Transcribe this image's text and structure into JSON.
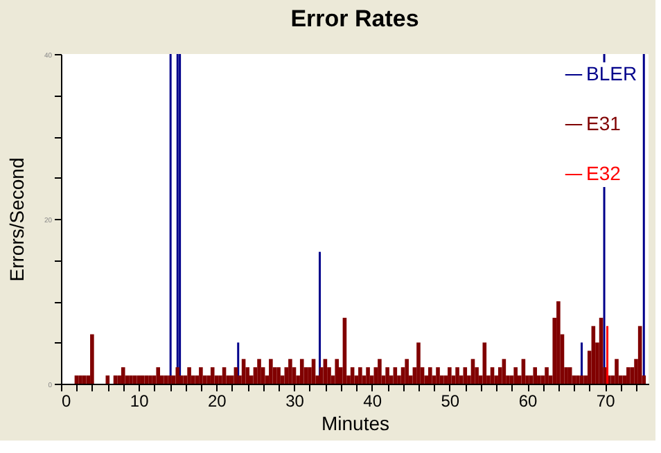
{
  "chart_data": {
    "type": "bar",
    "title": "Error Rates",
    "xlabel": "Minutes",
    "ylabel": "Errors/Second",
    "x": [
      0,
      0.5,
      1,
      1.5,
      2,
      2.5,
      3,
      3.5,
      4,
      4.5,
      5,
      5.5,
      6,
      6.5,
      7,
      7.5,
      8,
      8.5,
      9,
      9.5,
      10,
      10.5,
      11,
      11.5,
      12,
      12.5,
      13,
      13.5,
      14,
      14.5,
      15,
      15.5,
      16,
      16.5,
      17,
      17.5,
      18,
      18.5,
      19,
      19.5,
      20,
      20.5,
      21,
      21.5,
      22,
      22.5,
      23,
      23.5,
      24,
      24.5,
      25,
      25.5,
      26,
      26.5,
      27,
      27.5,
      28,
      28.5,
      29,
      29.5,
      30,
      30.5,
      31,
      31.5,
      32,
      32.5,
      33,
      33.5,
      34,
      34.5,
      35,
      35.5,
      36,
      36.5,
      37,
      37.5,
      38,
      38.5,
      39,
      39.5,
      40,
      40.5,
      41,
      41.5,
      42,
      42.5,
      43,
      43.5,
      44,
      44.5,
      45,
      45.5,
      46,
      46.5,
      47,
      47.5,
      48,
      48.5,
      49,
      49.5,
      50,
      50.5,
      51,
      51.5,
      52,
      52.5,
      53,
      53.5,
      54,
      54.5,
      55,
      55.5,
      56,
      56.5,
      57,
      57.5,
      58,
      58.5,
      59,
      59.5,
      60,
      60.5,
      61,
      61.5,
      62,
      62.5,
      63,
      63.5,
      64,
      64.5,
      65,
      65.5,
      66,
      66.5,
      67,
      67.5,
      68,
      68.5,
      69,
      69.5,
      70,
      70.5,
      71,
      71.5,
      72,
      72.5,
      73,
      73.5,
      74,
      74.5,
      75
    ],
    "series": [
      {
        "name": "BLER",
        "color": "#00008b",
        "x": [
          14.1,
          15.0,
          15.3,
          22.8,
          33.3,
          67.0,
          69.9,
          75.0
        ],
        "values": [
          40,
          40,
          40,
          5,
          16,
          5,
          40,
          40
        ]
      },
      {
        "name": "E31",
        "color": "#800000",
        "values": [
          0,
          0,
          0,
          0,
          1,
          1,
          1,
          1,
          6,
          0,
          0,
          0,
          1,
          0,
          1,
          1,
          2,
          1,
          1,
          1,
          1,
          1,
          1,
          1,
          1,
          2,
          1,
          1,
          1,
          1,
          2,
          1,
          1,
          2,
          1,
          1,
          2,
          1,
          1,
          2,
          1,
          1,
          2,
          1,
          1,
          2,
          1,
          3,
          2,
          1,
          2,
          3,
          2,
          1,
          3,
          2,
          2,
          1,
          2,
          3,
          2,
          1,
          3,
          2,
          2,
          3,
          1,
          2,
          3,
          2,
          1,
          3,
          2,
          8,
          1,
          2,
          1,
          2,
          1,
          2,
          1,
          2,
          3,
          1,
          2,
          1,
          2,
          1,
          2,
          3,
          1,
          2,
          5,
          2,
          1,
          2,
          1,
          2,
          1,
          1,
          2,
          1,
          2,
          1,
          2,
          1,
          3,
          2,
          1,
          5,
          1,
          2,
          1,
          2,
          3,
          1,
          1,
          2,
          1,
          3,
          1,
          1,
          2,
          1,
          1,
          2,
          1,
          8,
          10,
          6,
          2,
          2,
          1,
          1,
          1,
          1,
          4,
          7,
          5,
          8,
          2,
          1,
          1,
          3,
          1,
          1,
          2,
          2,
          3,
          7,
          1
        ]
      },
      {
        "name": "E32",
        "color": "#ff0000",
        "x": [
          70.3
        ],
        "values": [
          7
        ]
      }
    ],
    "xlim": [
      0,
      75.6
    ],
    "xticks": [
      0,
      {
        "value": 2,
        "label": null
      },
      {
        "value": 4,
        "label": null
      },
      {
        "value": 6,
        "label": null
      },
      {
        "value": 8,
        "label": null
      },
      10,
      {
        "value": 12,
        "label": null
      },
      {
        "value": 14,
        "label": null
      },
      {
        "value": 16,
        "label": null
      },
      {
        "value": 18,
        "label": null
      },
      20,
      {
        "value": 22,
        "label": null
      },
      {
        "value": 24,
        "label": null
      },
      {
        "value": 26,
        "label": null
      },
      {
        "value": 28,
        "label": null
      },
      30,
      {
        "value": 32,
        "label": null
      },
      {
        "value": 34,
        "label": null
      },
      {
        "value": 36,
        "label": null
      },
      {
        "value": 38,
        "label": null
      },
      40,
      {
        "value": 42,
        "label": null
      },
      {
        "value": 44,
        "label": null
      },
      {
        "value": 46,
        "label": null
      },
      {
        "value": 48,
        "label": null
      },
      50,
      {
        "value": 52,
        "label": null
      },
      {
        "value": 54,
        "label": null
      },
      {
        "value": 56,
        "label": null
      },
      {
        "value": 58,
        "label": null
      },
      60,
      {
        "value": 62,
        "label": null
      },
      {
        "value": 64,
        "label": null
      },
      {
        "value": 66,
        "label": null
      },
      {
        "value": 68,
        "label": null
      },
      70,
      {
        "value": 72,
        "label": null
      },
      {
        "value": 74,
        "label": null
      }
    ],
    "ylim": [
      0,
      40
    ],
    "yticks": [
      0,
      {
        "value": 5,
        "label": null
      },
      {
        "value": 10,
        "label": null
      },
      {
        "value": 15,
        "label": null
      },
      20,
      {
        "value": 25,
        "label": null
      },
      {
        "value": 30,
        "label": null
      },
      {
        "value": 35,
        "label": null
      },
      40
    ],
    "legend": "top right",
    "grid": false
  }
}
